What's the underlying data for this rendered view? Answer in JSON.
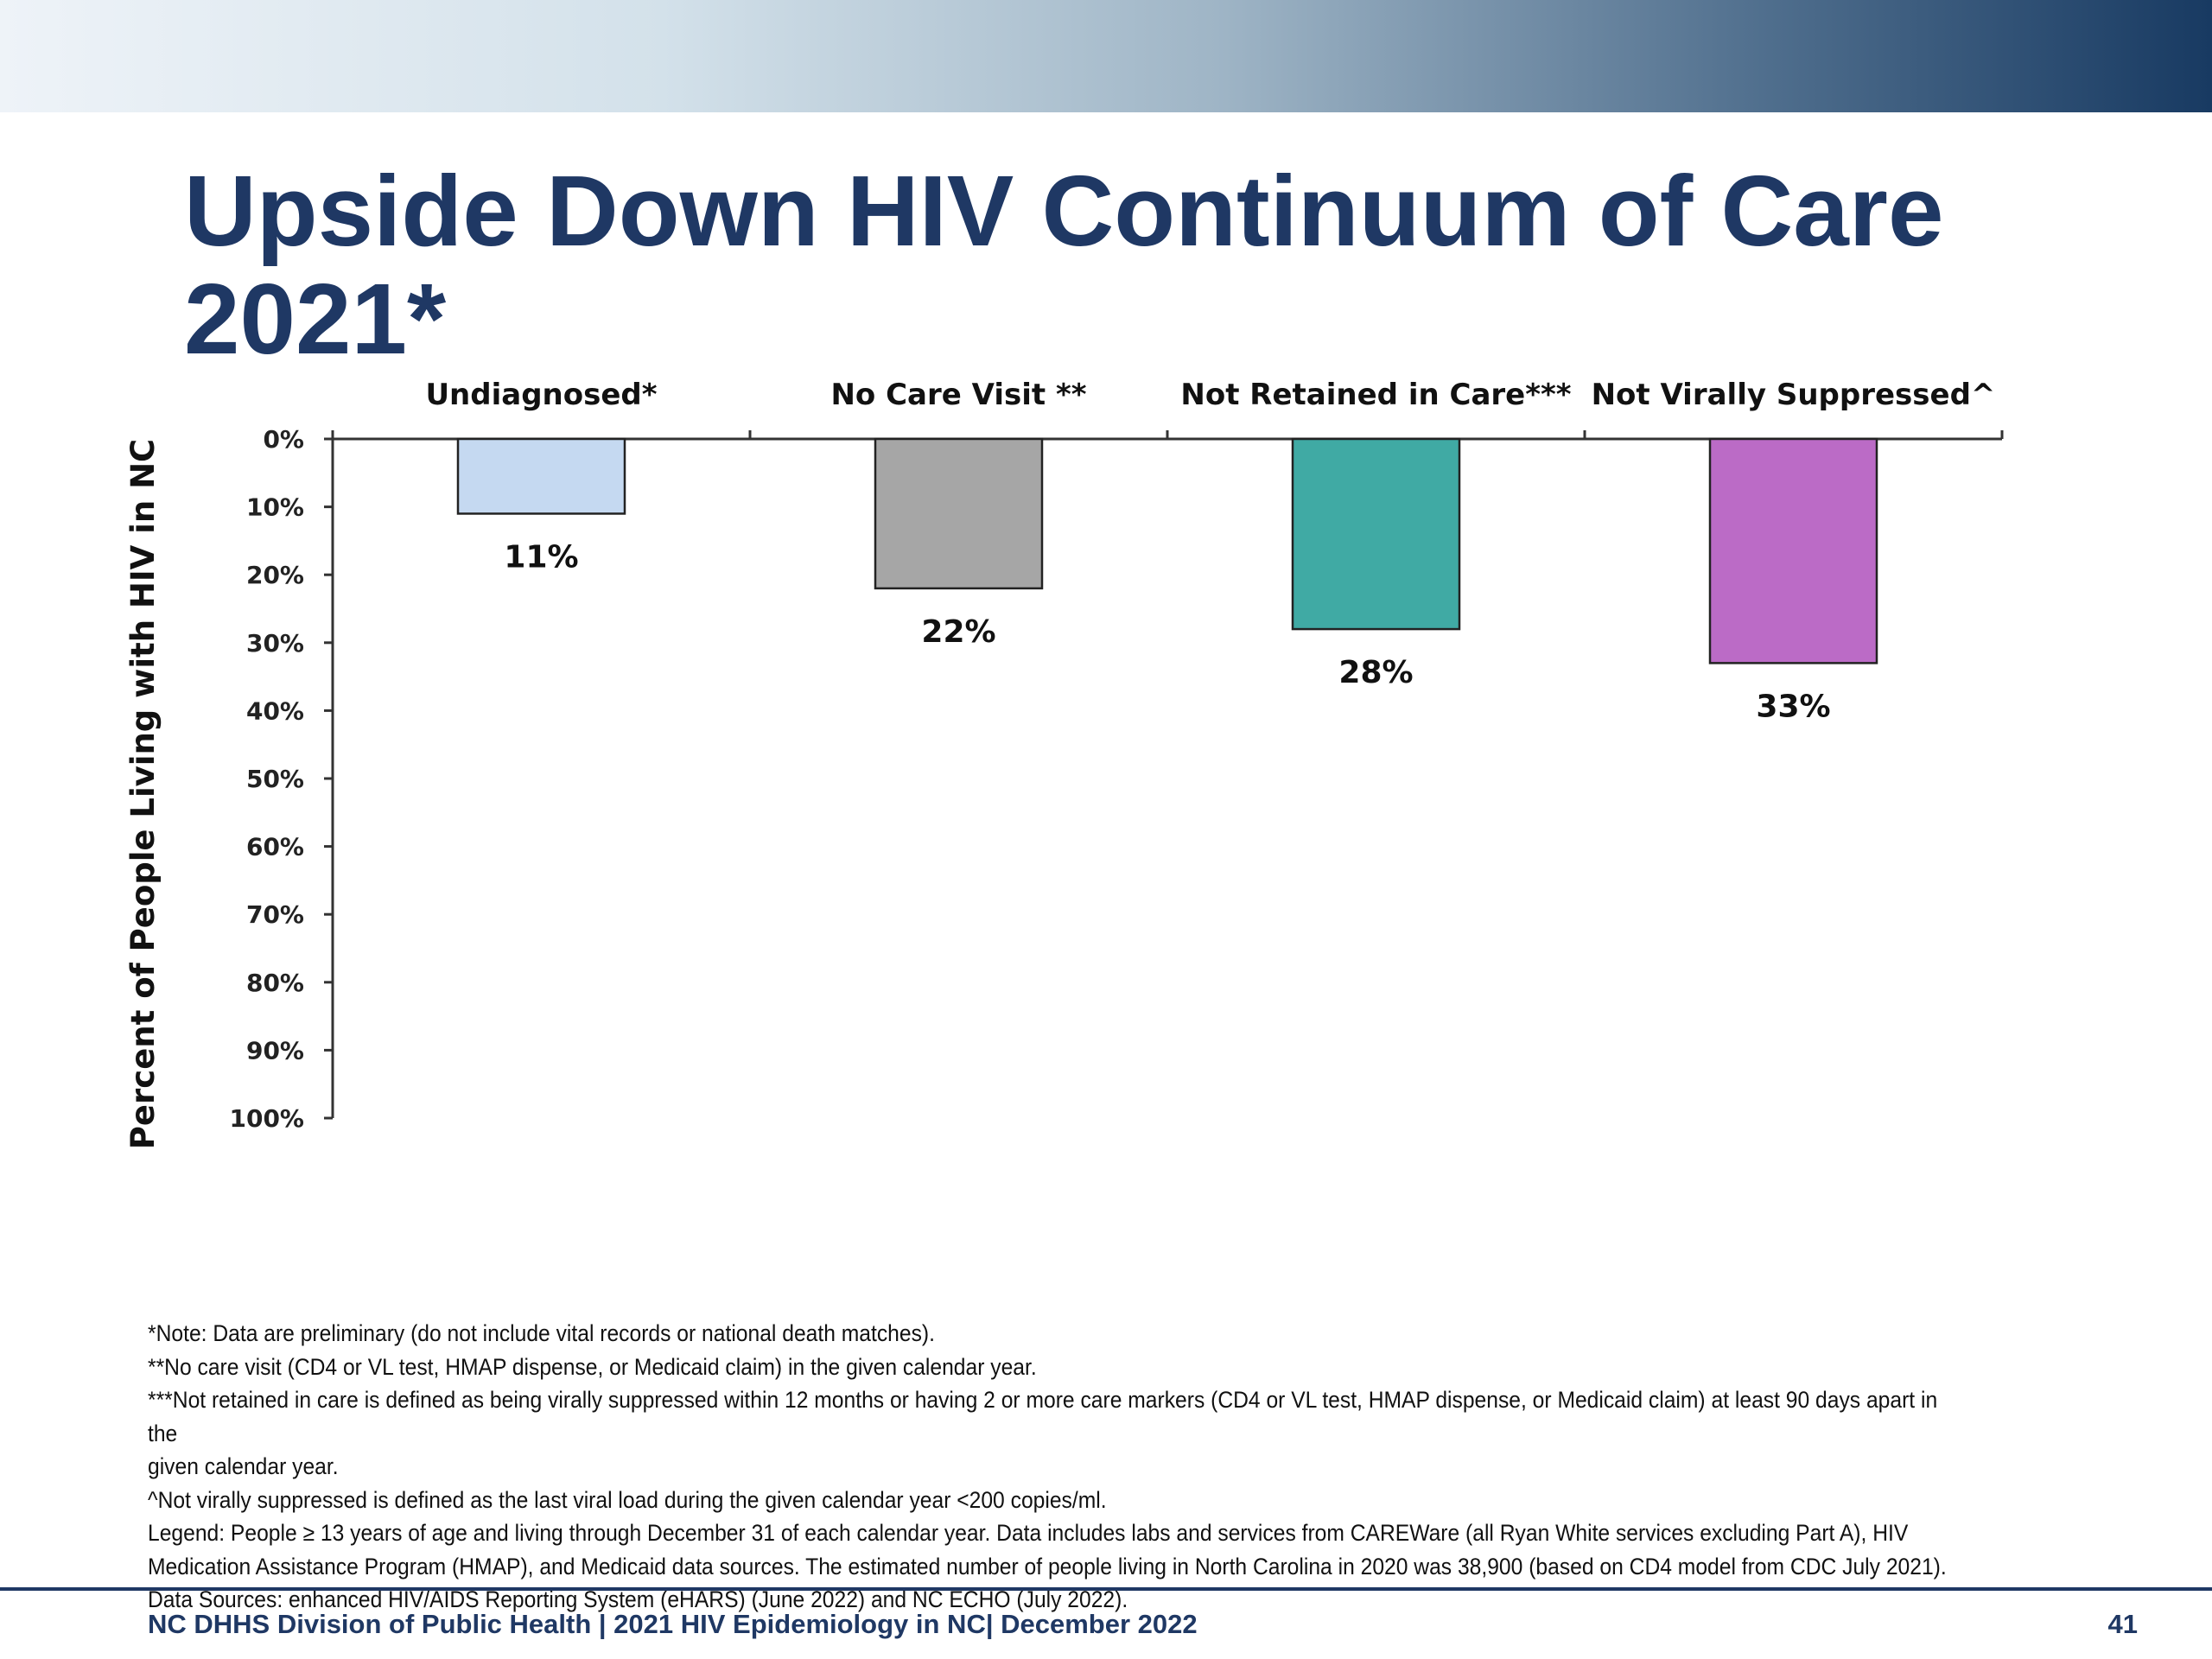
{
  "slide": {
    "title_line1": "Upside Down HIV Continuum of Care",
    "title_line2": "2021*"
  },
  "chart_data": {
    "type": "bar",
    "orientation": "inverted",
    "categories": [
      "Undiagnosed*",
      "No Care Visit **",
      "Not Retained in Care***",
      "Not Virally Suppressed^"
    ],
    "values": [
      11,
      22,
      28,
      33
    ],
    "value_labels": [
      "11%",
      "22%",
      "28%",
      "33%"
    ],
    "colors": [
      "#c5d9f1",
      "#a6a6a6",
      "#40aaa4",
      "#bb6bc6"
    ],
    "ylabel": "Percent of People Living with HIV in NC",
    "ylim": [
      0,
      100
    ],
    "yticks": [
      0,
      10,
      20,
      30,
      40,
      50,
      60,
      70,
      80,
      90,
      100
    ],
    "ytick_labels": [
      "0%",
      "10%",
      "20%",
      "30%",
      "40%",
      "50%",
      "60%",
      "70%",
      "80%",
      "90%",
      "100%"
    ],
    "grid": false,
    "legend": "none"
  },
  "notes": [
    "*Note: Data are preliminary (do not include vital records or national death matches).",
    "**No care visit (CD4 or VL test, HMAP dispense, or Medicaid claim) in the given calendar year.",
    "***Not retained in care is defined as being virally suppressed within 12 months or having 2 or more care markers (CD4 or VL test, HMAP dispense, or Medicaid claim) at least 90 days apart in the",
    "given calendar year.",
    "^Not virally suppressed is defined as the last viral load during the given calendar year <200 copies/ml.",
    "Legend: People ≥ 13 years of age and living through December 31 of each calendar year. Data includes labs and services from CAREWare (all Ryan White services excluding Part A), HIV",
    "Medication Assistance Program (HMAP), and Medicaid data sources. The estimated number of people living in North Carolina in 2020 was 38,900 (based on CD4 model from CDC July 2021).",
    "Data Sources: enhanced HIV/AIDS Reporting System (eHARS) (June 2022) and NC ECHO (July 2022)."
  ],
  "footer": {
    "text": "NC DHHS Division of Public Health | 2021 HIV Epidemiology in NC| December 2022",
    "page_number": "41"
  }
}
